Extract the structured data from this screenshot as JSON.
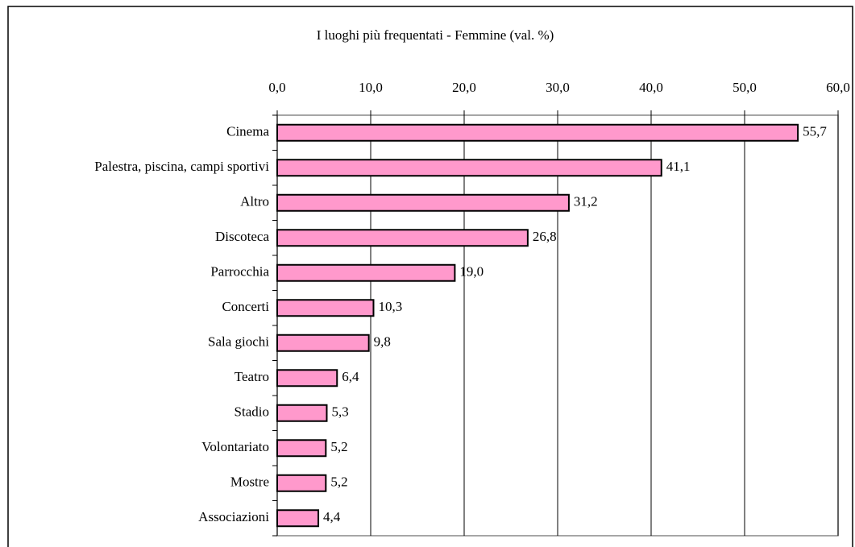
{
  "chart_data": {
    "type": "bar",
    "orientation": "horizontal",
    "title": "I luoghi più frequentati - Femmine (val. %)",
    "categories": [
      "Cinema",
      "Palestra, piscina, campi sportivi",
      "Altro",
      "Discoteca",
      "Parrocchia",
      "Concerti",
      "Sala giochi",
      "Teatro",
      "Stadio",
      "Volontariato",
      "Mostre",
      "Associazioni"
    ],
    "values": [
      55.7,
      41.1,
      31.2,
      26.8,
      19.0,
      10.3,
      9.8,
      6.4,
      5.3,
      5.2,
      5.2,
      4.4
    ],
    "value_labels": [
      "55,7",
      "41,1",
      "31,2",
      "26,8",
      "19,0",
      "10,3",
      "9,8",
      "6,4",
      "5,3",
      "5,2",
      "5,2",
      "4,4"
    ],
    "color": "#ff99cc",
    "xlim": [
      0,
      60
    ],
    "xticks": [
      {
        "value": 0,
        "label": "0,0"
      },
      {
        "value": 10,
        "label": "10,0"
      },
      {
        "value": 20,
        "label": "20,0"
      },
      {
        "value": 30,
        "label": "30,0"
      },
      {
        "value": 40,
        "label": "40,0"
      },
      {
        "value": 50,
        "label": "50,0"
      },
      {
        "value": 60,
        "label": "60,0"
      }
    ],
    "grid": true
  }
}
